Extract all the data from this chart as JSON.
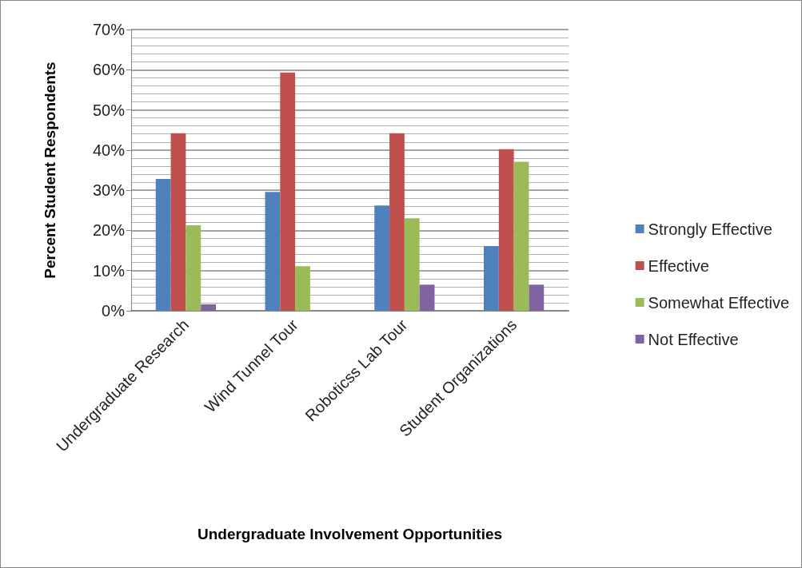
{
  "chart_data": {
    "type": "bar",
    "xlabel": "Undergraduate Involvement Opportunities",
    "ylabel": "Percent Student Respondents",
    "categories": [
      "Undergraduate Research",
      "Wind Tunnel Tour",
      "Roboticss Lab Tour",
      "Student Organizations"
    ],
    "series": [
      {
        "name": "Strongly Effective",
        "color": "#4f81bd",
        "values": [
          32.8,
          29.6,
          26.2,
          16.1
        ]
      },
      {
        "name": "Effective",
        "color": "#c0504d",
        "values": [
          44.2,
          59.3,
          44.2,
          40.2
        ]
      },
      {
        "name": "Somewhat Effective",
        "color": "#9bbb59",
        "values": [
          21.3,
          11.1,
          23.0,
          37.1
        ]
      },
      {
        "name": "Not Effective",
        "color": "#8064a2",
        "values": [
          1.6,
          0,
          6.5,
          6.5
        ]
      }
    ],
    "ylim": [
      0,
      70
    ],
    "yticks": [
      {
        "value": 0,
        "label": "0%"
      },
      {
        "value": 10,
        "label": "10%"
      },
      {
        "value": 20,
        "label": "20%"
      },
      {
        "value": 30,
        "label": "30%"
      },
      {
        "value": 40,
        "label": "40%"
      },
      {
        "value": 50,
        "label": "50%"
      },
      {
        "value": 60,
        "label": "60%"
      },
      {
        "value": 70,
        "label": "70%"
      }
    ],
    "grid": true,
    "legend": "right"
  }
}
